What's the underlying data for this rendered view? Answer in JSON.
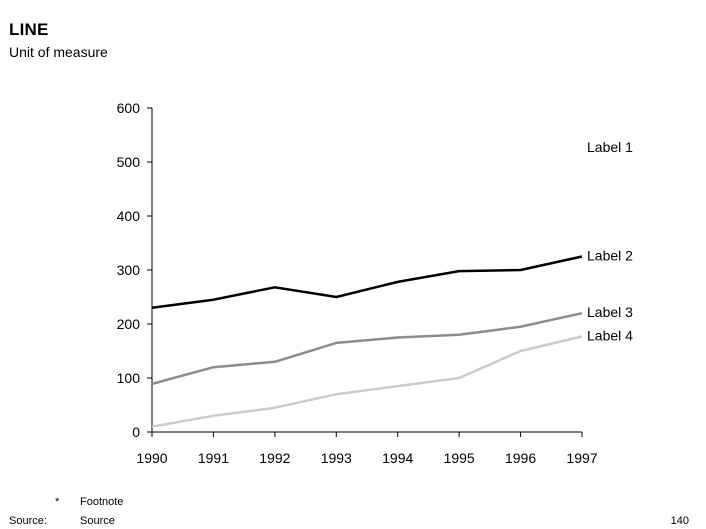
{
  "header": {
    "title": "LINE",
    "subtitle": "Unit of measure"
  },
  "footer": {
    "footnote_mark": "*",
    "footnote_text": "Footnote",
    "source_label": "Source:",
    "source_text": "Source",
    "page_number": "140"
  },
  "chart_data": {
    "type": "line",
    "title": "LINE",
    "subtitle": "Unit of measure",
    "xlabel": "",
    "ylabel": "",
    "x": [
      "1990",
      "1991",
      "1992",
      "1993",
      "1994",
      "1995",
      "1996",
      "1997"
    ],
    "ylim": [
      0,
      600
    ],
    "yticks": [
      "0",
      "100",
      "200",
      "300",
      "400",
      "500",
      "600"
    ],
    "grid": false,
    "legend": "direct labels at right end",
    "series": [
      {
        "name": "Label 2",
        "color": "#000000",
        "values": [
          230,
          245,
          268,
          250,
          278,
          298,
          300,
          325
        ]
      },
      {
        "name": "Label 3",
        "color": "#8c8c8c",
        "values": [
          89,
          120,
          130,
          165,
          175,
          180,
          195,
          220
        ]
      },
      {
        "name": "Label 4",
        "color": "#cccccc",
        "values": [
          10,
          30,
          45,
          70,
          85,
          100,
          150,
          177
        ]
      }
    ],
    "annotations": [
      "Label 1"
    ]
  }
}
